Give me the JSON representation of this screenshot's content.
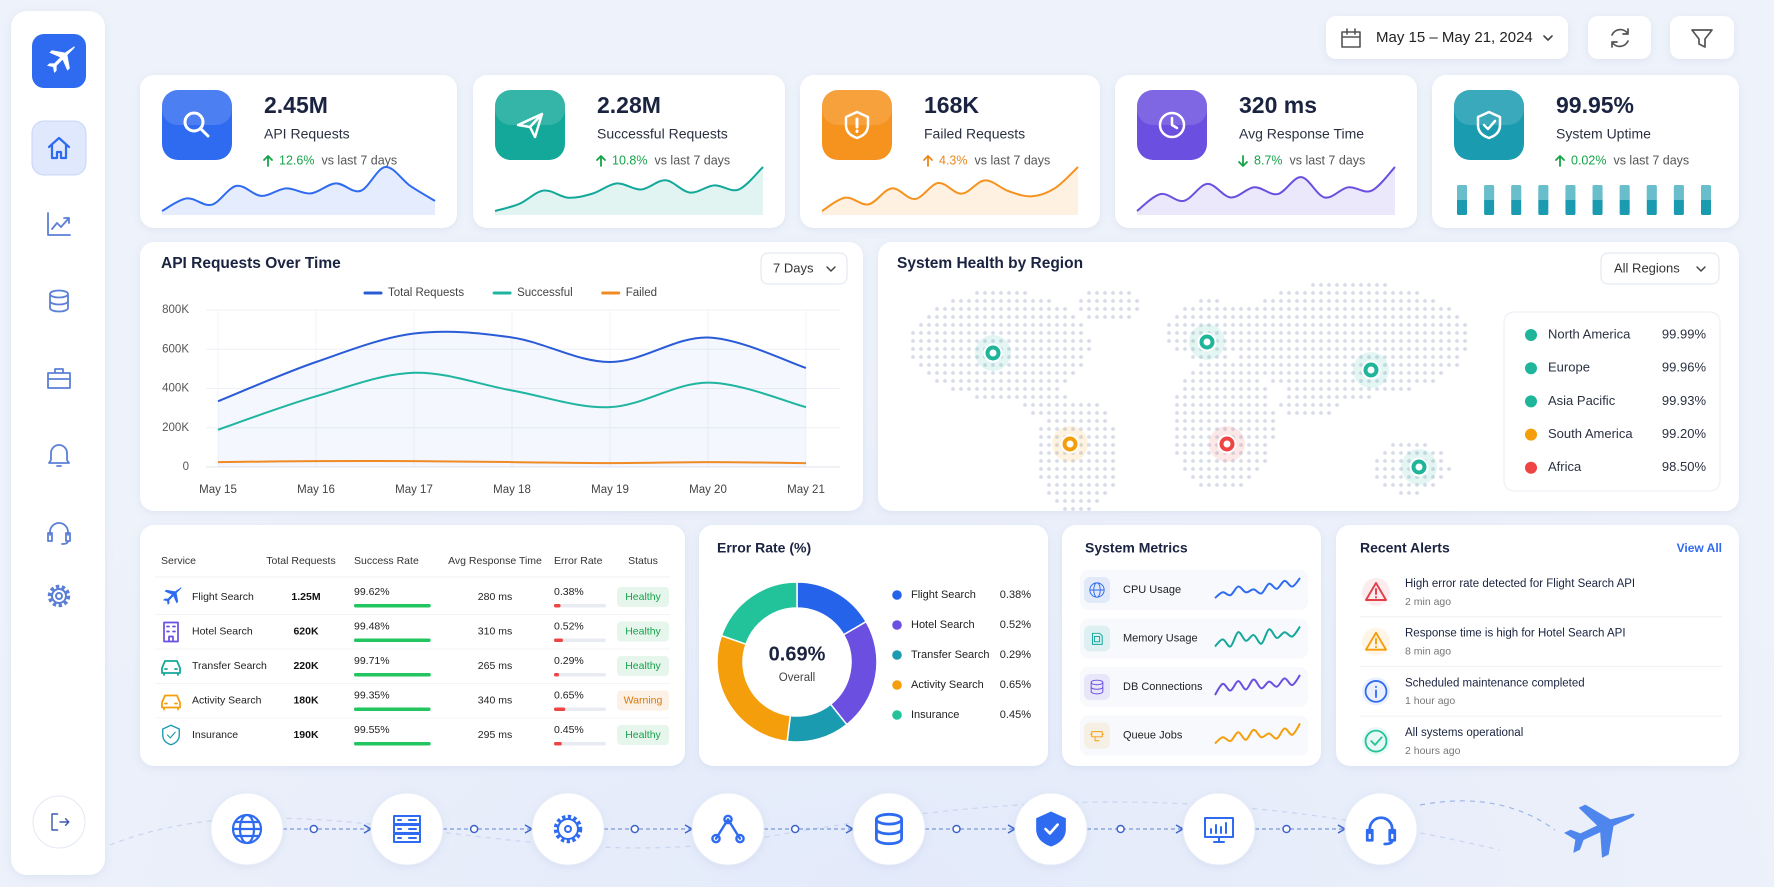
{
  "header": {
    "date_range": "May 15 – May 21, 2024"
  },
  "kpis": [
    {
      "value": "2.45M",
      "label": "API Requests",
      "change": "12.6%",
      "compare": "vs last 7 days",
      "direction": "up",
      "color": "#2f6bf0",
      "change_color": "#16a34a",
      "trend": [
        3,
        4,
        3.5,
        5,
        4.2,
        4.8,
        4.4,
        5.2,
        4.6,
        6.5,
        5,
        3.8
      ]
    },
    {
      "value": "2.28M",
      "label": "Successful Requests",
      "change": "10.8%",
      "compare": "vs last 7 days",
      "direction": "up",
      "color": "#14a89a",
      "change_color": "#16a34a",
      "trend": [
        2.5,
        3.2,
        4.5,
        3.8,
        4.2,
        5.2,
        4.6,
        5.5,
        4.3,
        5,
        4.6,
        6.8
      ]
    },
    {
      "value": "168K",
      "label": "Failed Requests",
      "change": "4.3%",
      "compare": "vs last 7 days",
      "direction": "up",
      "color": "#f6921e",
      "change_color": "#e8891c",
      "trend": [
        2.5,
        3.5,
        3,
        4.2,
        3.4,
        4.6,
        3.8,
        4.8,
        4,
        3.6,
        4.2,
        5.8
      ]
    },
    {
      "value": "320 ms",
      "label": "Avg Response Time",
      "change": "8.7%",
      "compare": "vs last 7 days",
      "direction": "down",
      "color": "#6a4fe0",
      "change_color": "#16a34a",
      "trend": [
        3,
        4,
        3.6,
        4.6,
        3.8,
        4.4,
        4,
        5,
        3.8,
        4.4,
        4.2,
        5.6
      ]
    },
    {
      "value": "99.95%",
      "label": "System Uptime",
      "change": "0.02%",
      "compare": "vs last 7 days",
      "direction": "up",
      "color": "#1a9bb0",
      "change_color": "#16a34a",
      "bars": [
        100,
        100,
        100,
        100,
        100,
        100,
        100,
        100,
        100,
        100
      ]
    }
  ],
  "chart_data": [
    {
      "type": "line",
      "title": "API Requests Over Time",
      "range": "7 Days",
      "categories": [
        "May 15",
        "May 16",
        "May 17",
        "May 18",
        "May 19",
        "May 20",
        "May 21"
      ],
      "ylim": [
        0,
        800000
      ],
      "yticks": [
        0,
        {
          "value": 200000,
          "label": "200K"
        },
        {
          "value": 400000,
          "label": "400K"
        },
        {
          "value": 600000,
          "label": "600K"
        },
        {
          "value": 800000,
          "label": "800K"
        }
      ],
      "grid": true,
      "series": [
        {
          "name": "Total Requests",
          "color": "#2a5bd7",
          "values": [
            335000,
            535000,
            680000,
            660000,
            535000,
            660000,
            505000
          ]
        },
        {
          "name": "Successful",
          "color": "#1fb5a0",
          "values": [
            190000,
            360000,
            480000,
            390000,
            305000,
            430000,
            305000
          ]
        },
        {
          "name": "Failed",
          "color": "#f08a24",
          "values": [
            25000,
            30000,
            30000,
            25000,
            20000,
            25000,
            20000
          ]
        }
      ]
    },
    {
      "type": "donut",
      "title": "Error Rate (%)",
      "center_value": "0.69%",
      "center_label": "Overall",
      "categories": [
        "Flight Search",
        "Hotel Search",
        "Transfer Search",
        "Activity Search",
        "Insurance"
      ],
      "values": [
        0.38,
        0.52,
        0.29,
        0.65,
        0.45
      ],
      "value_labels": [
        "0.38%",
        "0.52%",
        "0.29%",
        "0.65%",
        "0.45%"
      ],
      "colors": [
        "#2563eb",
        "#6a4fe0",
        "#1a9bb0",
        "#f59e0b",
        "#22c39a"
      ]
    }
  ],
  "regions": {
    "title": "System Health by Region",
    "filter": "All Regions",
    "items": [
      {
        "name": "North America",
        "value": "99.99%",
        "color": "#1fb59a"
      },
      {
        "name": "Europe",
        "value": "99.96%",
        "color": "#1fb59a"
      },
      {
        "name": "Asia Pacific",
        "value": "99.93%",
        "color": "#1fb59a"
      },
      {
        "name": "South America",
        "value": "99.20%",
        "color": "#f59e0b"
      },
      {
        "name": "Africa",
        "value": "98.50%",
        "color": "#ef4444"
      }
    ]
  },
  "services": {
    "columns": [
      "Service",
      "Total Requests",
      "Success Rate",
      "Avg Response Time",
      "Error Rate",
      "Status"
    ],
    "rows": [
      [
        "Flight Search",
        "1.25M",
        "99.62%",
        "280 ms",
        "0.38%",
        "Healthy"
      ],
      [
        "Hotel Search",
        "620K",
        "99.48%",
        "310 ms",
        "0.52%",
        "Healthy"
      ],
      [
        "Transfer Search",
        "220K",
        "99.71%",
        "265 ms",
        "0.29%",
        "Healthy"
      ],
      [
        "Activity Search",
        "180K",
        "99.35%",
        "340 ms",
        "0.65%",
        "Warning"
      ],
      [
        "Insurance",
        "190K",
        "99.55%",
        "295 ms",
        "0.45%",
        "Healthy"
      ]
    ],
    "icon_colors": [
      "#2f6bf0",
      "#6a4fe0",
      "#14a89a",
      "#f59e0b",
      "#1a9bb0"
    ],
    "status_colors": [
      "#16a34a",
      "#16a34a",
      "#16a34a",
      "#d97706",
      "#16a34a"
    ]
  },
  "metrics": {
    "title": "System Metrics",
    "items": [
      {
        "name": "CPU Usage",
        "color": "#2f6bf0",
        "trend": [
          2,
          3,
          2.5,
          4,
          3,
          3.5,
          2.8,
          4.5,
          3.6,
          5,
          4,
          5.5
        ]
      },
      {
        "name": "Memory Usage",
        "color": "#14a89a",
        "trend": [
          3,
          3.5,
          3,
          4,
          3.4,
          3.8,
          3.2,
          4.2,
          3.6,
          4,
          3.7,
          4.4
        ]
      },
      {
        "name": "DB Connections",
        "color": "#6a4fe0",
        "trend": [
          2,
          4,
          2.8,
          4.5,
          3,
          4.8,
          3.2,
          4.4,
          3.5,
          5,
          3.8,
          5.6
        ]
      },
      {
        "name": "Queue Jobs",
        "color": "#f59e0b",
        "trend": [
          2,
          3,
          2.4,
          3.8,
          2.6,
          4.2,
          3,
          3.6,
          2.8,
          4.4,
          3.4,
          5.2
        ]
      }
    ]
  },
  "alerts": {
    "title": "Recent Alerts",
    "action": "View All",
    "items": [
      {
        "text": "High error rate detected for Flight Search API",
        "time": "2 min ago",
        "color": "#e0404a"
      },
      {
        "text": "Response time is high for Hotel Search API",
        "time": "8 min ago",
        "color": "#f59e0b"
      },
      {
        "text": "Scheduled maintenance completed",
        "time": "1 hour ago",
        "color": "#2f6bf0"
      },
      {
        "text": "All systems operational",
        "time": "2 hours ago",
        "color": "#22c39a"
      }
    ]
  }
}
